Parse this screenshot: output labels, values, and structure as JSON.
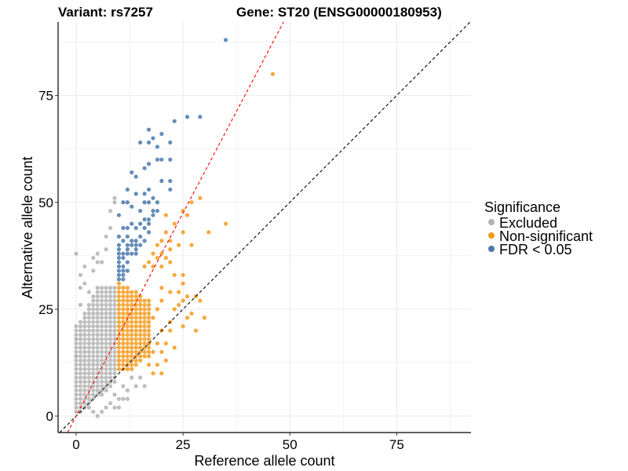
{
  "chart_data": {
    "type": "scatter",
    "title_left": "Variant: rs7257",
    "title_right": "Gene: ST20 (ENSG00000180953)",
    "xlabel": "Reference allele count",
    "ylabel": "Alternative allele count",
    "xlim": [
      -4,
      92
    ],
    "ylim": [
      -4,
      92
    ],
    "xticks": [
      0,
      25,
      50,
      75
    ],
    "yticks": [
      0,
      25,
      50,
      75
    ],
    "grid": true,
    "legend": {
      "title": "Significance",
      "position": "right",
      "entries": [
        {
          "label": "Excluded",
          "color": "#b3b3b3"
        },
        {
          "label": "Non-significant",
          "color": "#f59a1b"
        },
        {
          "label": "FDR < 0.05",
          "color": "#4a79ad"
        }
      ]
    },
    "reference_lines": [
      {
        "name": "identity",
        "slope": 1.0,
        "intercept": 0,
        "color": "#000000",
        "style": "dashed"
      },
      {
        "name": "fitted",
        "slope": 1.9,
        "intercept": 0,
        "color": "#ff0000",
        "style": "dashed"
      }
    ],
    "categories_rules": {
      "excluded": "ref < 10",
      "nonsig_fdr": "ref >= 10"
    },
    "series": [
      {
        "name": "Excluded",
        "color": "#b3b3b3",
        "grid_ranges": [
          {
            "x": [
              0,
              9
            ],
            "y": [
              1,
              30
            ]
          }
        ],
        "points": [
          [
            0,
            38
          ],
          [
            1,
            33
          ],
          [
            2,
            35
          ],
          [
            3,
            29
          ],
          [
            4,
            37
          ],
          [
            5,
            38
          ],
          [
            6,
            36
          ],
          [
            7,
            39
          ],
          [
            8,
            44
          ],
          [
            8,
            48
          ],
          [
            9,
            51
          ],
          [
            9,
            50
          ],
          [
            7,
            42
          ],
          [
            5,
            36
          ],
          [
            4,
            34
          ],
          [
            2,
            31
          ],
          [
            1,
            30
          ],
          [
            0,
            21
          ],
          [
            0,
            18
          ],
          [
            0,
            14
          ],
          [
            1,
            26
          ],
          [
            9,
            5
          ],
          [
            10,
            4
          ],
          [
            11,
            4
          ],
          [
            12,
            4
          ],
          [
            11,
            7
          ],
          [
            13,
            9
          ],
          [
            14,
            7
          ],
          [
            16,
            7
          ],
          [
            12,
            6
          ],
          [
            15,
            9
          ],
          [
            10,
            2
          ],
          [
            9,
            2
          ],
          [
            8,
            3
          ],
          [
            7,
            2
          ],
          [
            6,
            1
          ],
          [
            5,
            0
          ],
          [
            4,
            1
          ],
          [
            3,
            2
          ]
        ]
      },
      {
        "name": "Non-significant",
        "color": "#f59a1b",
        "grid_ranges": [
          {
            "x": [
              10,
              17
            ],
            "y": [
              11,
              31
            ]
          }
        ],
        "points": [
          [
            46,
            80
          ],
          [
            35,
            45
          ],
          [
            29,
            51
          ],
          [
            27,
            50
          ],
          [
            25,
            48
          ],
          [
            26,
            47
          ],
          [
            21,
            47
          ],
          [
            25,
            43
          ],
          [
            31,
            43
          ],
          [
            21,
            43
          ],
          [
            23,
            45
          ],
          [
            22,
            41
          ],
          [
            24,
            40
          ],
          [
            20,
            41
          ],
          [
            19,
            40
          ],
          [
            22,
            39
          ],
          [
            27,
            40
          ],
          [
            21,
            37
          ],
          [
            19,
            37
          ],
          [
            18,
            38
          ],
          [
            20,
            38
          ],
          [
            22,
            36
          ],
          [
            17,
            36
          ],
          [
            20,
            35
          ],
          [
            18,
            35
          ],
          [
            16,
            35
          ],
          [
            23,
            33
          ],
          [
            25,
            33
          ],
          [
            25,
            31
          ],
          [
            20,
            30
          ],
          [
            22,
            29
          ],
          [
            24,
            29
          ],
          [
            26,
            28
          ],
          [
            20,
            27
          ],
          [
            24,
            26
          ],
          [
            27,
            24
          ],
          [
            30,
            23
          ],
          [
            28,
            20
          ],
          [
            26,
            23
          ],
          [
            23,
            25
          ],
          [
            19,
            25
          ],
          [
            22,
            22
          ],
          [
            18,
            23
          ],
          [
            20,
            20
          ],
          [
            22,
            20
          ],
          [
            25,
            21
          ],
          [
            19,
            17
          ],
          [
            17,
            17
          ],
          [
            21,
            17
          ],
          [
            18,
            15
          ],
          [
            20,
            15
          ],
          [
            19,
            12
          ],
          [
            17,
            12
          ],
          [
            18,
            10
          ],
          [
            20,
            10
          ],
          [
            21,
            13
          ],
          [
            23,
            16
          ],
          [
            29,
            27
          ],
          [
            28,
            28
          ],
          [
            25,
            27
          ]
        ]
      },
      {
        "name": "FDR < 0.05",
        "color": "#4a79ad",
        "points": [
          [
            35,
            88
          ],
          [
            29,
            70
          ],
          [
            26,
            70
          ],
          [
            23,
            69
          ],
          [
            20,
            66
          ],
          [
            17,
            67
          ],
          [
            18,
            65
          ],
          [
            15,
            64
          ],
          [
            17,
            64
          ],
          [
            19,
            63
          ],
          [
            22,
            64
          ],
          [
            19,
            60
          ],
          [
            20,
            60
          ],
          [
            22,
            60
          ],
          [
            17,
            59
          ],
          [
            16,
            58
          ],
          [
            13,
            57
          ],
          [
            14,
            56
          ],
          [
            14,
            52
          ],
          [
            16,
            52
          ],
          [
            12,
            53
          ],
          [
            17,
            53
          ],
          [
            18,
            51
          ],
          [
            20,
            55
          ],
          [
            22,
            55
          ],
          [
            22,
            53
          ],
          [
            11,
            50
          ],
          [
            12,
            50
          ],
          [
            16,
            50
          ],
          [
            17,
            50
          ],
          [
            19,
            50
          ],
          [
            13,
            49
          ],
          [
            15,
            48
          ],
          [
            18,
            48
          ],
          [
            19,
            48
          ],
          [
            16,
            46
          ],
          [
            17,
            46
          ],
          [
            18,
            47
          ],
          [
            10,
            47
          ],
          [
            13,
            45
          ],
          [
            15,
            45
          ],
          [
            17,
            45
          ],
          [
            11,
            44
          ],
          [
            12,
            44
          ],
          [
            14,
            44
          ],
          [
            16,
            44
          ],
          [
            17,
            43
          ],
          [
            12,
            42
          ],
          [
            15,
            42
          ],
          [
            10,
            42
          ],
          [
            11,
            41
          ],
          [
            13,
            41
          ],
          [
            14,
            41
          ],
          [
            16,
            41
          ],
          [
            10,
            40
          ],
          [
            12,
            40
          ],
          [
            13,
            40
          ],
          [
            14,
            40
          ],
          [
            15,
            40
          ],
          [
            10,
            39
          ],
          [
            12,
            39
          ],
          [
            14,
            39
          ],
          [
            10,
            38
          ],
          [
            11,
            38
          ],
          [
            12,
            38
          ],
          [
            13,
            38
          ],
          [
            14,
            38
          ],
          [
            10,
            37
          ],
          [
            11,
            37
          ],
          [
            10,
            36
          ],
          [
            12,
            36
          ],
          [
            10,
            35
          ],
          [
            11,
            35
          ],
          [
            10,
            34
          ],
          [
            11,
            34
          ],
          [
            12,
            34
          ],
          [
            10,
            33
          ],
          [
            11,
            33
          ],
          [
            10,
            32
          ],
          [
            11,
            32
          ]
        ]
      }
    ]
  }
}
